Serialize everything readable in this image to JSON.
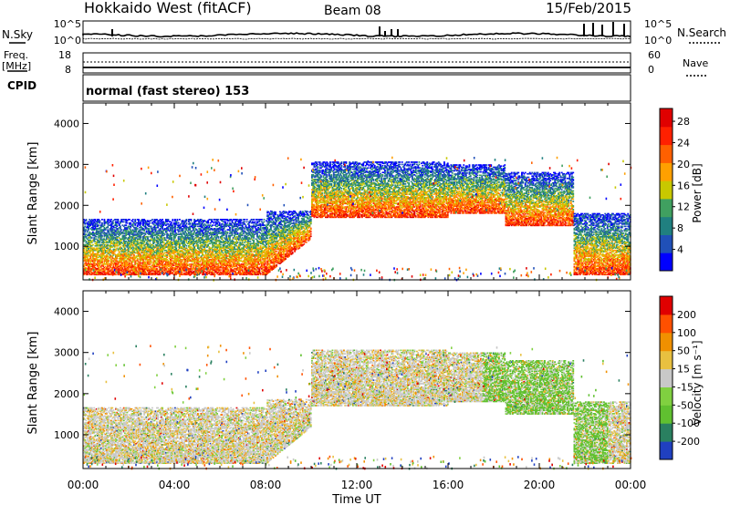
{
  "header": {
    "station": "Hokkaido West (fitACF)",
    "beam": "Beam 08",
    "date": "15/Feb/2015"
  },
  "noise_panel": {
    "left_label": "N.Sky",
    "right_label": "N.Search",
    "ticks_left": [
      "10^5",
      "10^0"
    ],
    "ticks_right": [
      "10^5",
      "10^0"
    ]
  },
  "freq_panel": {
    "left_label_1": "Freq.",
    "left_label_2": "[MHz]",
    "ticks_left": [
      "18",
      "8"
    ],
    "right_label": "Nave",
    "ticks_right": [
      "60",
      "0"
    ]
  },
  "cpid": {
    "label": "CPID",
    "value": "normal (fast stereo) 153"
  },
  "colors": {
    "power": [
      "#0000ff",
      "#2050b8",
      "#208080",
      "#40a060",
      "#c8c800",
      "#ffa000",
      "#ff6000",
      "#ff2000",
      "#e00000"
    ],
    "velocity": [
      "#2040c0",
      "#2a8060",
      "#60c030",
      "#80d040",
      "#c8c8c8",
      "#e8c040",
      "#f09000",
      "#ff5000",
      "#e00000"
    ]
  },
  "chart_data": [
    {
      "type": "heatmap",
      "name": "power",
      "ylabel": "Slant Range [km]",
      "ylim": [
        180,
        4500
      ],
      "y_ticks": [
        1000,
        2000,
        3000,
        4000
      ],
      "xlim": [
        0,
        24
      ],
      "x_ticks": [
        "00:00",
        "04:00",
        "08:00",
        "12:00",
        "16:00",
        "20:00",
        "00:00"
      ],
      "colorbar": {
        "label": "Power [dB]",
        "ticks": [
          "4",
          "8",
          "12",
          "16",
          "20",
          "24",
          "28"
        ],
        "range": [
          0,
          30
        ]
      },
      "scatter_bands": [
        {
          "t0": 0.0,
          "t1": 8.0,
          "r0": 300,
          "r1": 1650
        },
        {
          "t0": 8.0,
          "t1": 10.0,
          "r0": 900,
          "r1": 1850
        },
        {
          "t0": 10.0,
          "t1": 16.0,
          "r0": 1700,
          "r1": 3050
        },
        {
          "t0": 16.0,
          "t1": 18.5,
          "r0": 1800,
          "r1": 3000
        },
        {
          "t0": 18.5,
          "t1": 21.5,
          "r0": 1500,
          "r1": 2800
        },
        {
          "t0": 21.5,
          "t1": 24.0,
          "r0": 300,
          "r1": 1800
        }
      ]
    },
    {
      "type": "heatmap",
      "name": "velocity",
      "ylabel": "Slant Range [km]",
      "ylim": [
        180,
        4500
      ],
      "y_ticks": [
        1000,
        2000,
        3000,
        4000
      ],
      "xlim": [
        0,
        24
      ],
      "x_ticks": [
        "00:00",
        "04:00",
        "08:00",
        "12:00",
        "16:00",
        "20:00",
        "00:00"
      ],
      "xlabel": "Time UT",
      "colorbar": {
        "label": "Velocity [m s⁻¹]",
        "ticks": [
          "200",
          "100",
          "50",
          "15",
          "-15",
          "-50",
          "-100",
          "-200"
        ],
        "range": [
          -250,
          250
        ]
      }
    }
  ]
}
